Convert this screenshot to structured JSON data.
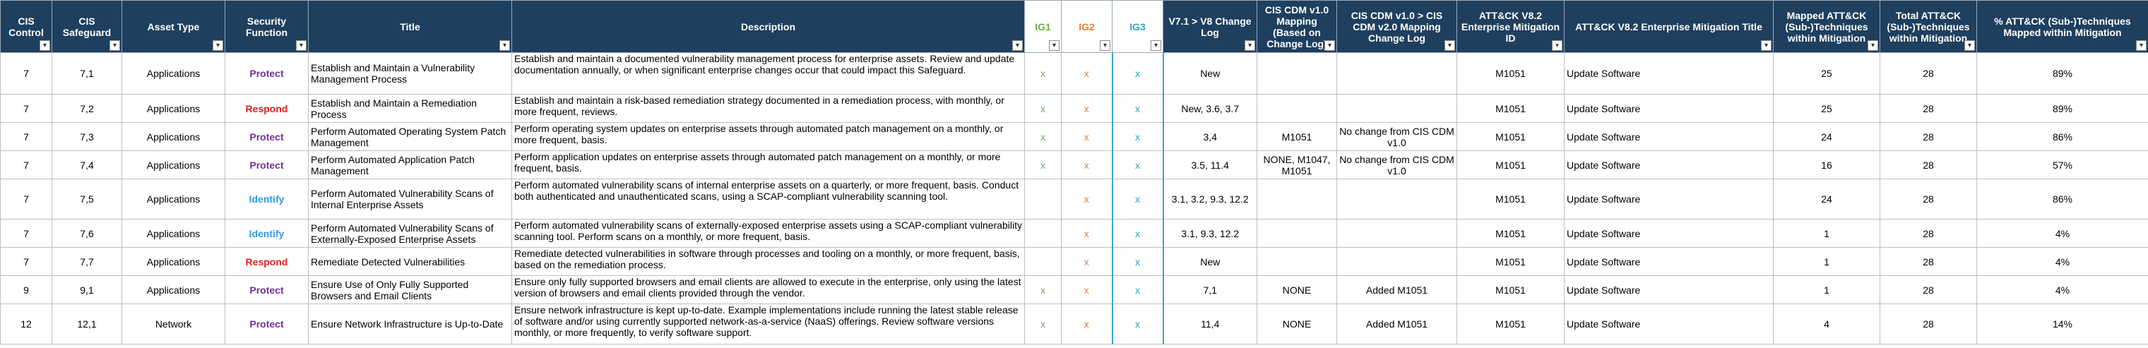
{
  "colors": {
    "header_bg": "#1f3f5f",
    "header_text": "#ffffff",
    "ig1": "#70ad47",
    "ig2": "#ed7d31",
    "ig3": "#2fa3c4",
    "protect": "#7030a0",
    "respond": "#e02020",
    "identify": "#3399dd"
  },
  "columns": [
    {
      "key": "control",
      "label": "CIS Control",
      "ig": false
    },
    {
      "key": "safeguard",
      "label": "CIS Safeguard",
      "ig": false
    },
    {
      "key": "asset",
      "label": "Asset Type",
      "ig": false
    },
    {
      "key": "func",
      "label": "Security Function",
      "ig": false
    },
    {
      "key": "title",
      "label": "Title",
      "ig": false
    },
    {
      "key": "desc",
      "label": "Description",
      "ig": false
    },
    {
      "key": "ig1",
      "label": "IG1",
      "ig": true,
      "color": "#70ad47"
    },
    {
      "key": "ig2",
      "label": "IG2",
      "ig": true,
      "color": "#ed7d31"
    },
    {
      "key": "ig3",
      "label": "IG3",
      "ig": true,
      "color": "#2fa3c4"
    },
    {
      "key": "v71",
      "label": "V7.1 > V8 Change Log",
      "ig": false
    },
    {
      "key": "cdm",
      "label": "CIS CDM v1.0 Mapping (Based on Change Log)",
      "ig": false
    },
    {
      "key": "cdmlog",
      "label": "CIS CDM v1.0 > CIS CDM v2.0 Mapping Change Log",
      "ig": false
    },
    {
      "key": "mitid",
      "label": "ATT&CK V8.2 Enterprise Mitigation ID",
      "ig": false,
      "filtered": true
    },
    {
      "key": "mittitle",
      "label": "ATT&CK V8.2 Enterprise Mitigation Title",
      "ig": false
    },
    {
      "key": "mapped",
      "label": "Mapped ATT&CK (Sub-)Techniques within Mitigation",
      "ig": false
    },
    {
      "key": "total",
      "label": "Total ATT&CK (Sub-)Techniques within Mitigation",
      "ig": false
    },
    {
      "key": "pct",
      "label": "% ATT&CK (Sub-)Techniques Mapped within Mitigation",
      "ig": false
    }
  ],
  "rows": [
    {
      "control": "7",
      "safeguard": "7,1",
      "asset": "Applications",
      "func": "Protect",
      "title": "Establish and Maintain a Vulnerability Management Process",
      "desc": "Establish and maintain a documented vulnerability management process for enterprise assets. Review and update documentation annually, or when significant enterprise changes occur that could impact this Safeguard.",
      "ig1": "x",
      "ig2": "x",
      "ig3": "x",
      "v71": "New",
      "cdm": "",
      "cdmlog": "",
      "mitid": "M1051",
      "mittitle": "Update Software",
      "mapped": "25",
      "total": "28",
      "pct": "89%"
    },
    {
      "control": "7",
      "safeguard": "7,2",
      "asset": "Applications",
      "func": "Respond",
      "title": "Establish and Maintain a Remediation Process",
      "desc": "Establish and maintain a risk-based remediation strategy documented in a remediation process, with monthly, or more frequent, reviews.",
      "ig1": "x",
      "ig2": "x",
      "ig3": "x",
      "v71": "New, 3.6, 3.7",
      "cdm": "",
      "cdmlog": "",
      "mitid": "M1051",
      "mittitle": "Update Software",
      "mapped": "25",
      "total": "28",
      "pct": "89%"
    },
    {
      "control": "7",
      "safeguard": "7,3",
      "asset": "Applications",
      "func": "Protect",
      "title": "Perform Automated Operating System Patch Management",
      "desc": "Perform operating system updates on enterprise assets through automated patch management on a monthly, or more frequent, basis.",
      "ig1": "x",
      "ig2": "x",
      "ig3": "x",
      "v71": "3,4",
      "cdm": "M1051",
      "cdmlog": "No change from CIS CDM v1.0",
      "mitid": "M1051",
      "mittitle": "Update Software",
      "mapped": "24",
      "total": "28",
      "pct": "86%"
    },
    {
      "control": "7",
      "safeguard": "7,4",
      "asset": "Applications",
      "func": "Protect",
      "title": "Perform Automated Application Patch Management",
      "desc": "Perform application updates on enterprise assets through automated patch management on a monthly, or more frequent, basis.",
      "ig1": "x",
      "ig2": "x",
      "ig3": "x",
      "v71": "3.5, 11.4",
      "cdm": "NONE, M1047, M1051",
      "cdmlog": "No change from CIS CDM v1.0",
      "mitid": "M1051",
      "mittitle": "Update Software",
      "mapped": "16",
      "total": "28",
      "pct": "57%"
    },
    {
      "control": "7",
      "safeguard": "7,5",
      "asset": "Applications",
      "func": "Identify",
      "title": "Perform Automated Vulnerability Scans of Internal Enterprise Assets",
      "desc": "Perform automated vulnerability scans of internal enterprise assets on a quarterly, or more frequent, basis. Conduct both authenticated and unauthenticated scans, using a SCAP-compliant vulnerability scanning tool.",
      "ig1": "",
      "ig2": "x",
      "ig3": "x",
      "v71": "3.1, 3.2, 9.3, 12.2",
      "cdm": "",
      "cdmlog": "",
      "mitid": "M1051",
      "mittitle": "Update Software",
      "mapped": "24",
      "total": "28",
      "pct": "86%"
    },
    {
      "control": "7",
      "safeguard": "7,6",
      "asset": "Applications",
      "func": "Identify",
      "title": "Perform Automated Vulnerability Scans of Externally-Exposed Enterprise Assets",
      "desc": "Perform automated vulnerability scans of externally-exposed enterprise assets using a SCAP-compliant vulnerability scanning tool. Perform scans on a monthly, or more frequent, basis.",
      "ig1": "",
      "ig2": "x",
      "ig3": "x",
      "v71": "3.1, 9.3, 12.2",
      "cdm": "",
      "cdmlog": "",
      "mitid": "M1051",
      "mittitle": "Update Software",
      "mapped": "1",
      "total": "28",
      "pct": "4%"
    },
    {
      "control": "7",
      "safeguard": "7,7",
      "asset": "Applications",
      "func": "Respond",
      "title": "Remediate Detected Vulnerabilities",
      "desc": "Remediate detected vulnerabilities in software through processes and tooling on a monthly, or more frequent, basis, based on the remediation process.",
      "ig1": "",
      "ig2": "x",
      "ig3": "x",
      "v71": "New",
      "cdm": "",
      "cdmlog": "",
      "mitid": "M1051",
      "mittitle": "Update Software",
      "mapped": "1",
      "total": "28",
      "pct": "4%"
    },
    {
      "control": "9",
      "safeguard": "9,1",
      "asset": "Applications",
      "func": "Protect",
      "title": "Ensure Use of Only Fully Supported Browsers and Email Clients",
      "desc": "Ensure only fully supported browsers and email clients are allowed to execute in the enterprise, only using the latest version of browsers and email clients provided through the vendor.",
      "ig1": "x",
      "ig2": "x",
      "ig3": "x",
      "v71": "7,1",
      "cdm": "NONE",
      "cdmlog": "Added M1051",
      "mitid": "M1051",
      "mittitle": "Update Software",
      "mapped": "1",
      "total": "28",
      "pct": "4%"
    },
    {
      "control": "12",
      "safeguard": "12,1",
      "asset": "Network",
      "func": "Protect",
      "title": "Ensure Network Infrastructure is Up-to-Date",
      "desc": "Ensure network infrastructure is kept up-to-date. Example implementations include running the latest stable release of software and/or using currently supported network-as-a-service (NaaS) offerings. Review software versions monthly, or more frequently, to verify software support.",
      "ig1": "x",
      "ig2": "x",
      "ig3": "x",
      "v71": "11,4",
      "cdm": "NONE",
      "cdmlog": "Added M1051",
      "mitid": "M1051",
      "mittitle": "Update Software",
      "mapped": "4",
      "total": "28",
      "pct": "14%"
    }
  ]
}
